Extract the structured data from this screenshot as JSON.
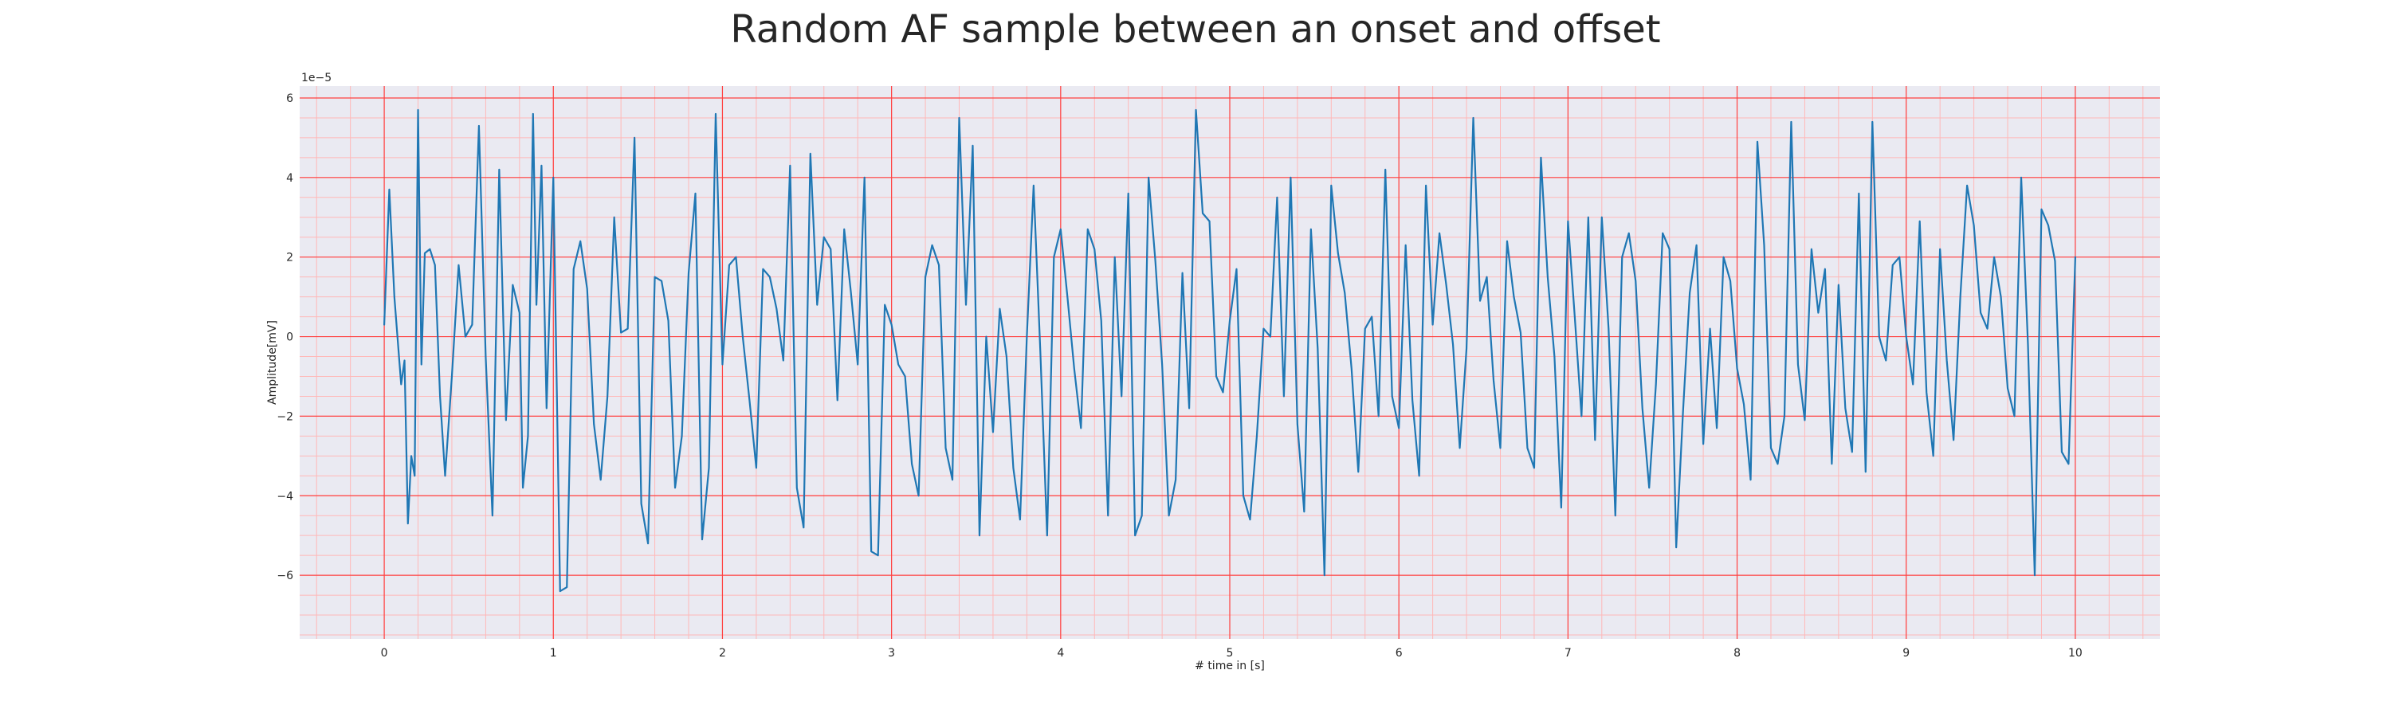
{
  "chart_data": {
    "type": "line",
    "title": "Random AF sample between an onset and offset",
    "xlabel": "# time in [s]",
    "ylabel": "Amplitude[mV]",
    "y_scale_label": "1e−5",
    "y_multiplier": 1e-05,
    "xlim": [
      -0.5,
      10.5
    ],
    "ylim": [
      -7.6,
      6.3
    ],
    "x_ticks": [
      0,
      1,
      2,
      3,
      4,
      5,
      6,
      7,
      8,
      9,
      10
    ],
    "x_tick_labels": [
      "0",
      "1",
      "2",
      "3",
      "4",
      "5",
      "6",
      "7",
      "8",
      "9",
      "10"
    ],
    "y_ticks": [
      6,
      4,
      2,
      0,
      -2,
      -4,
      -6
    ],
    "y_tick_labels": [
      "6",
      "4",
      "2",
      "0",
      "−2",
      "−4",
      "−6"
    ],
    "grid": {
      "major": true,
      "minor": true
    },
    "colors": {
      "background": "#EAEAF2",
      "major_grid": "#FF4040",
      "minor_grid": "#FFB8B8",
      "line": "#1F77B4"
    },
    "series": [
      {
        "x": [
          0.0,
          0.03,
          0.06,
          0.1,
          0.12,
          0.14,
          0.16,
          0.18,
          0.2,
          0.22,
          0.24,
          0.27,
          0.3,
          0.33,
          0.36,
          0.4,
          0.44,
          0.48,
          0.52,
          0.56,
          0.6,
          0.64,
          0.68,
          0.72,
          0.76,
          0.8,
          0.82,
          0.85,
          0.88,
          0.9,
          0.93,
          0.96,
          1.0,
          1.04,
          1.08,
          1.12,
          1.16,
          1.2,
          1.24,
          1.28,
          1.32,
          1.36,
          1.4,
          1.44,
          1.48,
          1.52,
          1.56,
          1.6,
          1.64,
          1.68,
          1.72,
          1.76,
          1.8,
          1.84,
          1.88,
          1.92,
          1.96,
          2.0,
          2.04,
          2.08,
          2.12,
          2.16,
          2.2,
          2.24,
          2.28,
          2.32,
          2.36,
          2.4,
          2.44,
          2.48,
          2.52,
          2.56,
          2.6,
          2.64,
          2.68,
          2.72,
          2.76,
          2.8,
          2.84,
          2.88,
          2.92,
          2.96,
          3.0,
          3.04,
          3.08,
          3.12,
          3.16,
          3.2,
          3.24,
          3.28,
          3.32,
          3.36,
          3.4,
          3.44,
          3.48,
          3.52,
          3.56,
          3.6,
          3.64,
          3.68,
          3.72,
          3.76,
          3.8,
          3.84,
          3.88,
          3.92,
          3.96,
          4.0,
          4.04,
          4.08,
          4.12,
          4.16,
          4.2,
          4.24,
          4.28,
          4.32,
          4.36,
          4.4,
          4.44,
          4.48,
          4.52,
          4.56,
          4.6,
          4.64,
          4.68,
          4.72,
          4.76,
          4.8,
          4.84,
          4.88,
          4.92,
          4.96,
          5.0,
          5.04,
          5.08,
          5.12,
          5.16,
          5.2,
          5.24,
          5.28,
          5.32,
          5.36,
          5.4,
          5.44,
          5.48,
          5.52,
          5.56,
          5.6,
          5.64,
          5.68,
          5.72,
          5.76,
          5.8,
          5.84,
          5.88,
          5.92,
          5.96,
          6.0,
          6.04,
          6.08,
          6.12,
          6.16,
          6.2,
          6.24,
          6.28,
          6.32,
          6.36,
          6.4,
          6.44,
          6.48,
          6.52,
          6.56,
          6.6,
          6.64,
          6.68,
          6.72,
          6.76,
          6.8,
          6.84,
          6.88,
          6.92,
          6.96,
          7.0,
          7.04,
          7.08,
          7.12,
          7.16,
          7.2,
          7.24,
          7.28,
          7.32,
          7.36,
          7.4,
          7.44,
          7.48,
          7.52,
          7.56,
          7.6,
          7.64,
          7.68,
          7.72,
          7.76,
          7.8,
          7.84,
          7.88,
          7.92,
          7.96,
          8.0,
          8.04,
          8.08,
          8.12,
          8.16,
          8.2,
          8.24,
          8.28,
          8.32,
          8.36,
          8.4,
          8.44,
          8.48,
          8.52,
          8.56,
          8.6,
          8.64,
          8.68,
          8.72,
          8.76,
          8.8,
          8.84,
          8.88,
          8.92,
          8.96,
          9.0,
          9.04,
          9.08,
          9.12,
          9.16,
          9.2,
          9.24,
          9.28,
          9.32,
          9.36,
          9.4,
          9.44,
          9.48,
          9.52,
          9.56,
          9.6,
          9.64,
          9.68,
          9.72,
          9.76,
          9.8,
          9.84,
          9.88,
          9.92,
          9.96,
          10.0
        ],
        "values": [
          0.3,
          3.7,
          1.0,
          -1.2,
          -0.6,
          -4.7,
          -3.0,
          -3.5,
          5.7,
          -0.7,
          2.1,
          2.2,
          1.8,
          -1.5,
          -3.5,
          -1.0,
          1.8,
          0.0,
          0.3,
          5.3,
          -0.5,
          -4.5,
          4.2,
          -2.1,
          1.3,
          0.6,
          -3.8,
          -2.5,
          5.6,
          0.8,
          4.3,
          -1.8,
          4.0,
          -6.4,
          -6.3,
          1.7,
          2.4,
          1.2,
          -2.2,
          -3.6,
          -1.5,
          3.0,
          0.1,
          0.2,
          5.0,
          -4.2,
          -5.2,
          1.5,
          1.4,
          0.4,
          -3.8,
          -2.5,
          1.6,
          3.6,
          -5.1,
          -3.3,
          5.6,
          -0.7,
          1.8,
          2.0,
          0.0,
          -1.6,
          -3.3,
          1.7,
          1.5,
          0.7,
          -0.6,
          4.3,
          -3.8,
          -4.8,
          4.6,
          0.8,
          2.5,
          2.2,
          -1.6,
          2.7,
          1.1,
          -0.7,
          4.0,
          -5.4,
          -5.5,
          0.8,
          0.3,
          -0.7,
          -1.0,
          -3.2,
          -4.0,
          1.5,
          2.3,
          1.8,
          -2.8,
          -3.6,
          5.5,
          0.8,
          4.8,
          -5.0,
          0.0,
          -2.4,
          0.7,
          -0.5,
          -3.3,
          -4.6,
          0.0,
          3.8,
          -0.4,
          -5.0,
          2.0,
          2.7,
          1.0,
          -0.8,
          -2.3,
          2.7,
          2.2,
          0.4,
          -4.5,
          2.0,
          -1.5,
          3.6,
          -5.0,
          -4.5,
          4.0,
          1.9,
          -0.7,
          -4.5,
          -3.6,
          1.6,
          -1.8,
          5.7,
          3.1,
          2.9,
          -1.0,
          -1.4,
          0.4,
          1.7,
          -4.0,
          -4.6,
          -2.5,
          0.2,
          0.0,
          3.5,
          -1.5,
          4.0,
          -2.2,
          -4.4,
          2.7,
          -0.3,
          -6.0,
          3.8,
          2.1,
          1.1,
          -0.8,
          -3.4,
          0.2,
          0.5,
          -2.0,
          4.2,
          -1.5,
          -2.3,
          2.3,
          -1.6,
          -3.5,
          3.8,
          0.3,
          2.6,
          1.3,
          -0.2,
          -2.8,
          -0.3,
          5.5,
          0.9,
          1.5,
          -1.1,
          -2.8,
          2.4,
          1.0,
          0.1,
          -2.8,
          -3.3,
          4.5,
          1.5,
          -0.5,
          -4.3,
          2.9,
          0.5,
          -2.0,
          3.0,
          -2.6,
          3.0,
          0.2,
          -4.5,
          2.0,
          2.6,
          1.4,
          -1.8,
          -3.8,
          -1.2,
          2.6,
          2.2,
          -5.3,
          -1.9,
          1.1,
          2.3,
          -2.7,
          0.2,
          -2.3,
          2.0,
          1.4,
          -0.8,
          -1.7,
          -3.6,
          4.9,
          2.3,
          -2.8,
          -3.2,
          -2.0,
          5.4,
          -0.7,
          -2.1,
          2.2,
          0.6,
          1.7,
          -3.2,
          1.3,
          -1.8,
          -2.9,
          3.6,
          -3.4,
          5.4,
          0.0,
          -0.6,
          1.8,
          2.0,
          0.0,
          -1.2,
          2.9,
          -1.4,
          -3.0,
          2.2,
          -0.6,
          -2.6,
          1.0,
          3.8,
          2.8,
          0.6,
          0.2,
          2.0,
          1.0,
          -1.3,
          -2.0,
          4.0,
          -0.2,
          -6.0,
          3.2,
          2.8,
          1.9,
          -2.9,
          -3.2,
          2.0
        ]
      }
    ]
  }
}
